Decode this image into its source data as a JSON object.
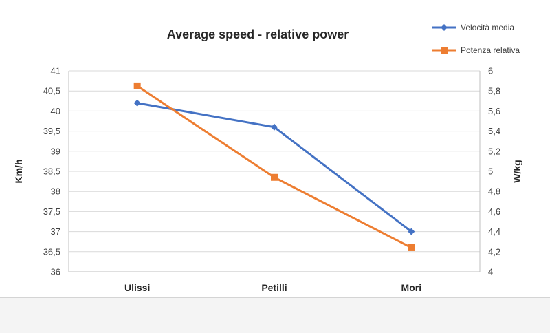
{
  "chart_data": {
    "type": "line",
    "title": "Average speed - relative power",
    "categories": [
      "Ulissi",
      "Petilli",
      "Mori"
    ],
    "y_left": {
      "label": "Km/h",
      "min": 36,
      "max": 41,
      "ticks": [
        "36",
        "36,5",
        "37",
        "37,5",
        "38",
        "38,5",
        "39",
        "39,5",
        "40",
        "40,5",
        "41"
      ]
    },
    "y_right": {
      "label": "W/kg",
      "min": 4,
      "max": 6,
      "ticks": [
        "4",
        "4,2",
        "4,4",
        "4,6",
        "4,8",
        "5",
        "5,2",
        "5,4",
        "5,6",
        "5,8",
        "6"
      ]
    },
    "series": [
      {
        "name": "Velocità media",
        "axis": "left",
        "marker": "diamond",
        "color": "#4472c4",
        "values": [
          40.2,
          39.6,
          37.0
        ]
      },
      {
        "name": "Potenza relativa",
        "axis": "right",
        "marker": "square",
        "color": "#ed7d31",
        "values": [
          5.85,
          4.94,
          4.24
        ]
      }
    ],
    "grid": true,
    "legend_position": "top-right"
  }
}
